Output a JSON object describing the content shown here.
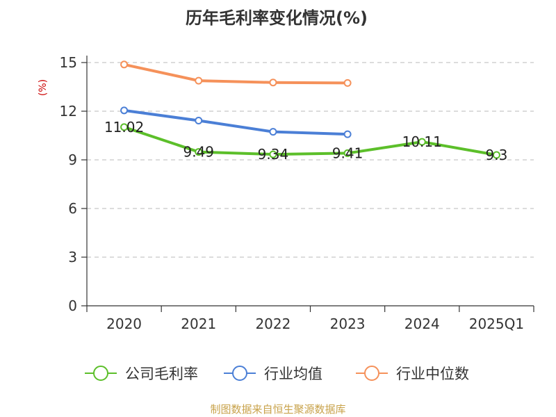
{
  "chart_data": {
    "type": "line",
    "title": "历年毛利率变化情况(%)",
    "ylabel": "(%)",
    "ylim": [
      0,
      15
    ],
    "yticks": [
      "0",
      "3",
      "6",
      "9",
      "12",
      "15"
    ],
    "categories": [
      "2020",
      "2021",
      "2022",
      "2023",
      "2024",
      "2025Q1"
    ],
    "grid": "horizontal-dashed",
    "legend_position": "bottom",
    "series": [
      {
        "name": "公司毛利率",
        "color": "#5cbf2a",
        "values": [
          11.02,
          9.49,
          9.34,
          9.41,
          10.11,
          9.3
        ],
        "labels": [
          "11.02",
          "9.49",
          "9.34",
          "9.41",
          "10.11",
          "9.3"
        ]
      },
      {
        "name": "行业均值",
        "color": "#4b7fd6",
        "values": [
          12.05,
          11.42,
          10.73,
          10.58,
          null,
          null
        ]
      },
      {
        "name": "行业中位数",
        "color": "#f5915a",
        "values": [
          14.88,
          13.88,
          13.77,
          13.74,
          null,
          null
        ]
      }
    ]
  },
  "source": {
    "text": "制图数据来自恒生聚源数据库",
    "color": "#c8a24a"
  },
  "unit_color": "#cc0000"
}
